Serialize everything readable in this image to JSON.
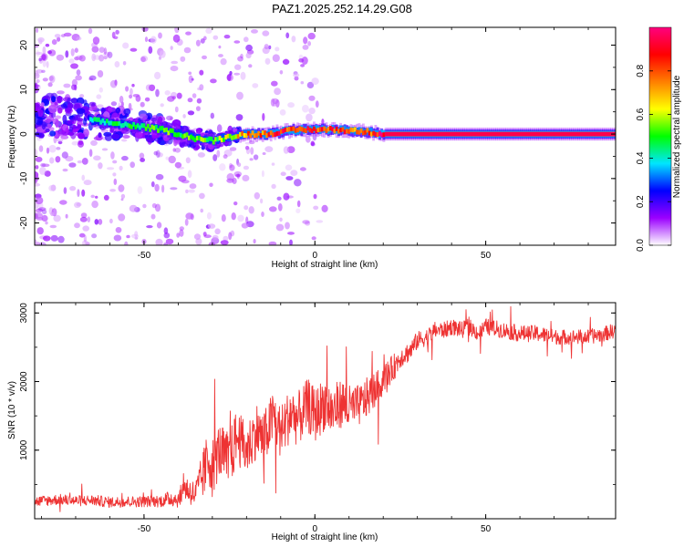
{
  "title": "PAZ1.2025.252.14.29.G08",
  "chart_data": [
    {
      "type": "heatmap",
      "xlabel": "Height of straight line (km)",
      "ylabel": "Frequency (Hz)",
      "xlim": [
        -82,
        88
      ],
      "ylim": [
        -25,
        24
      ],
      "xticks": [
        -50,
        0,
        50
      ],
      "yticks": [
        -20,
        -10,
        0,
        10,
        20
      ],
      "xtick_labels": [
        "-50",
        "0",
        "50"
      ],
      "ytick_labels": [
        "-20",
        "-10",
        "0",
        "10",
        "20"
      ],
      "colorbar": {
        "label": "Normalized spectral amplitude",
        "range": [
          0,
          1
        ],
        "ticks": [
          0.0,
          0.2,
          0.4,
          0.6,
          0.8
        ],
        "tick_labels": [
          "0.0",
          "0.2",
          "0.4",
          "0.6",
          "0.8"
        ],
        "colors": [
          "#ffffff",
          "#9b00ff",
          "#0000ff",
          "#00e5ff",
          "#00ff00",
          "#ffff00",
          "#ff7f00",
          "#ff0000",
          "#ff007f"
        ]
      },
      "ridge": {
        "x": [
          -80,
          -75,
          -70,
          -65,
          -60,
          -55,
          -50,
          -45,
          -40,
          -35,
          -30,
          -25,
          -20,
          -15,
          -10,
          -5,
          0,
          5,
          10,
          15,
          20,
          30,
          40,
          50,
          60,
          70,
          88
        ],
        "freq": [
          4.5,
          4.0,
          3.5,
          3.0,
          2.5,
          2.0,
          1.5,
          1.0,
          0.0,
          -1.0,
          -1.5,
          -0.5,
          0.0,
          0.0,
          0.5,
          1.0,
          1.0,
          1.0,
          0.8,
          0.5,
          0.0,
          0.0,
          0.0,
          0.0,
          0.0,
          0.0,
          0.0
        ],
        "amplitude": [
          0.3,
          0.35,
          0.4,
          0.4,
          0.45,
          0.45,
          0.5,
          0.55,
          0.5,
          0.55,
          0.5,
          0.6,
          0.75,
          0.8,
          0.85,
          0.85,
          0.85,
          0.85,
          0.8,
          0.75,
          0.95,
          0.95,
          0.95,
          0.95,
          0.95,
          0.95,
          0.95
        ]
      }
    },
    {
      "type": "line",
      "xlabel": "Height of straight line (km)",
      "ylabel": "SNR (10 * v/v)",
      "xlim": [
        -82,
        88
      ],
      "ylim": [
        0,
        3150
      ],
      "xticks": [
        -50,
        0,
        50
      ],
      "yticks": [
        1000,
        2000,
        3000
      ],
      "xtick_labels": [
        "-50",
        "0",
        "50"
      ],
      "ytick_labels": [
        "1000",
        "2000",
        "3000"
      ],
      "color": "#ee3333",
      "series": [
        {
          "name": "SNR",
          "x": [
            -82,
            -75,
            -70,
            -65,
            -60,
            -55,
            -50,
            -45,
            -42,
            -40,
            -38,
            -35,
            -33,
            -31,
            -30,
            -28,
            -25,
            -23,
            -20,
            -17,
            -15,
            -12,
            -10,
            -7,
            -5,
            -2,
            0,
            3,
            5,
            8,
            10,
            13,
            15,
            18,
            20,
            23,
            25,
            28,
            30,
            33,
            35,
            38,
            40,
            43,
            45,
            48,
            50,
            55,
            60,
            65,
            70,
            75,
            80,
            85,
            88
          ],
          "y": [
            250,
            280,
            260,
            270,
            240,
            250,
            250,
            260,
            300,
            280,
            450,
            350,
            600,
            900,
            750,
            1000,
            800,
            1200,
            1000,
            1300,
            1150,
            1500,
            1250,
            1550,
            1450,
            1650,
            1500,
            1700,
            1550,
            1700,
            1600,
            1650,
            1750,
            1900,
            2050,
            2200,
            2350,
            2450,
            2600,
            2650,
            2750,
            2750,
            2800,
            2750,
            2800,
            2700,
            2800,
            2750,
            2700,
            2700,
            2650,
            2650,
            2650,
            2700,
            2750
          ],
          "noise": [
            80,
            80,
            80,
            80,
            80,
            80,
            80,
            90,
            120,
            120,
            200,
            200,
            350,
            450,
            450,
            400,
            450,
            400,
            400,
            400,
            400,
            400,
            400,
            400,
            400,
            400,
            400,
            400,
            400,
            350,
            350,
            300,
            300,
            250,
            200,
            200,
            150,
            150,
            130,
            130,
            120,
            120,
            120,
            120,
            120,
            120,
            120,
            120,
            120,
            120,
            110,
            110,
            110,
            110,
            110
          ]
        }
      ]
    }
  ]
}
